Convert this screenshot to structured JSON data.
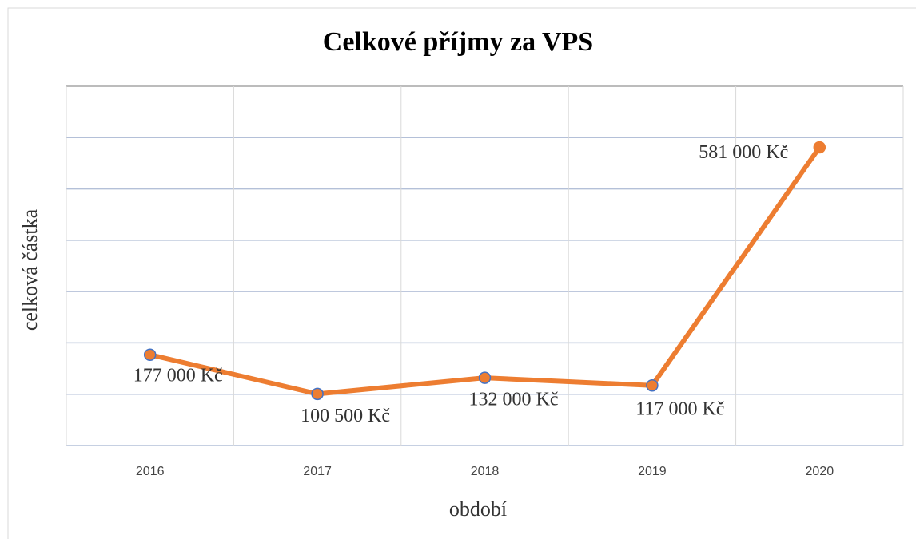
{
  "chart_data": {
    "type": "line",
    "title": "Celkové příjmy za VPS",
    "x_label": "období",
    "y_label": "celková částka",
    "categories": [
      "2016",
      "2017",
      "2018",
      "2019",
      "2020"
    ],
    "series": [
      {
        "name": "Celkové příjmy",
        "color": "#ed7d31",
        "marker_edge": "#4472c4",
        "values": [
          177000,
          100500,
          132000,
          117000,
          581000
        ],
        "value_labels": [
          "177 000 Kč",
          "100 500 Kč",
          "132 000 Kč",
          "117 000 Kč",
          "581 000 Kč"
        ]
      }
    ],
    "ylim": [
      0,
      700000
    ],
    "yticks": [
      0,
      100000,
      200000,
      300000,
      400000,
      500000,
      600000,
      700000
    ],
    "grid": true
  }
}
